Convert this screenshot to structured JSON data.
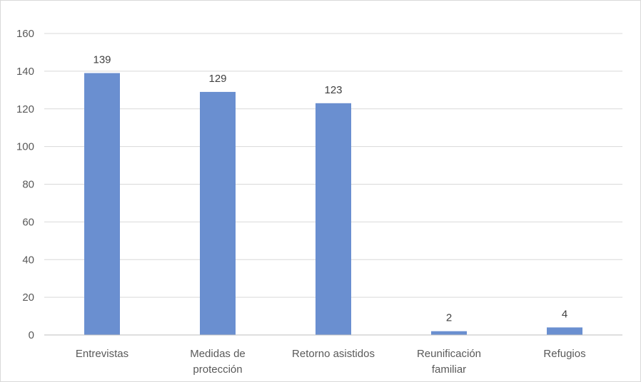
{
  "chart_data": {
    "type": "bar",
    "title": "",
    "xlabel": "",
    "ylabel": "",
    "categories": [
      [
        "Entrevistas"
      ],
      [
        "Medidas de",
        "protección"
      ],
      [
        "Retorno asistidos"
      ],
      [
        "Reunificación",
        "familiar"
      ],
      [
        "Refugios"
      ]
    ],
    "values": [
      139,
      129,
      123,
      2,
      4
    ],
    "data_labels": [
      "139",
      "129",
      "123",
      "2",
      "4"
    ],
    "ylim": [
      0,
      160
    ],
    "y_ticks": [
      0,
      20,
      40,
      60,
      80,
      100,
      120,
      140,
      160
    ],
    "y_tick_labels": [
      "0",
      "20",
      "40",
      "60",
      "80",
      "100",
      "120",
      "140",
      "160"
    ],
    "grid": true,
    "legend": "none",
    "bar_color": "#6a8fd0",
    "grid_color": "#d9d9d9",
    "axis_color": "#bfbfbf"
  }
}
